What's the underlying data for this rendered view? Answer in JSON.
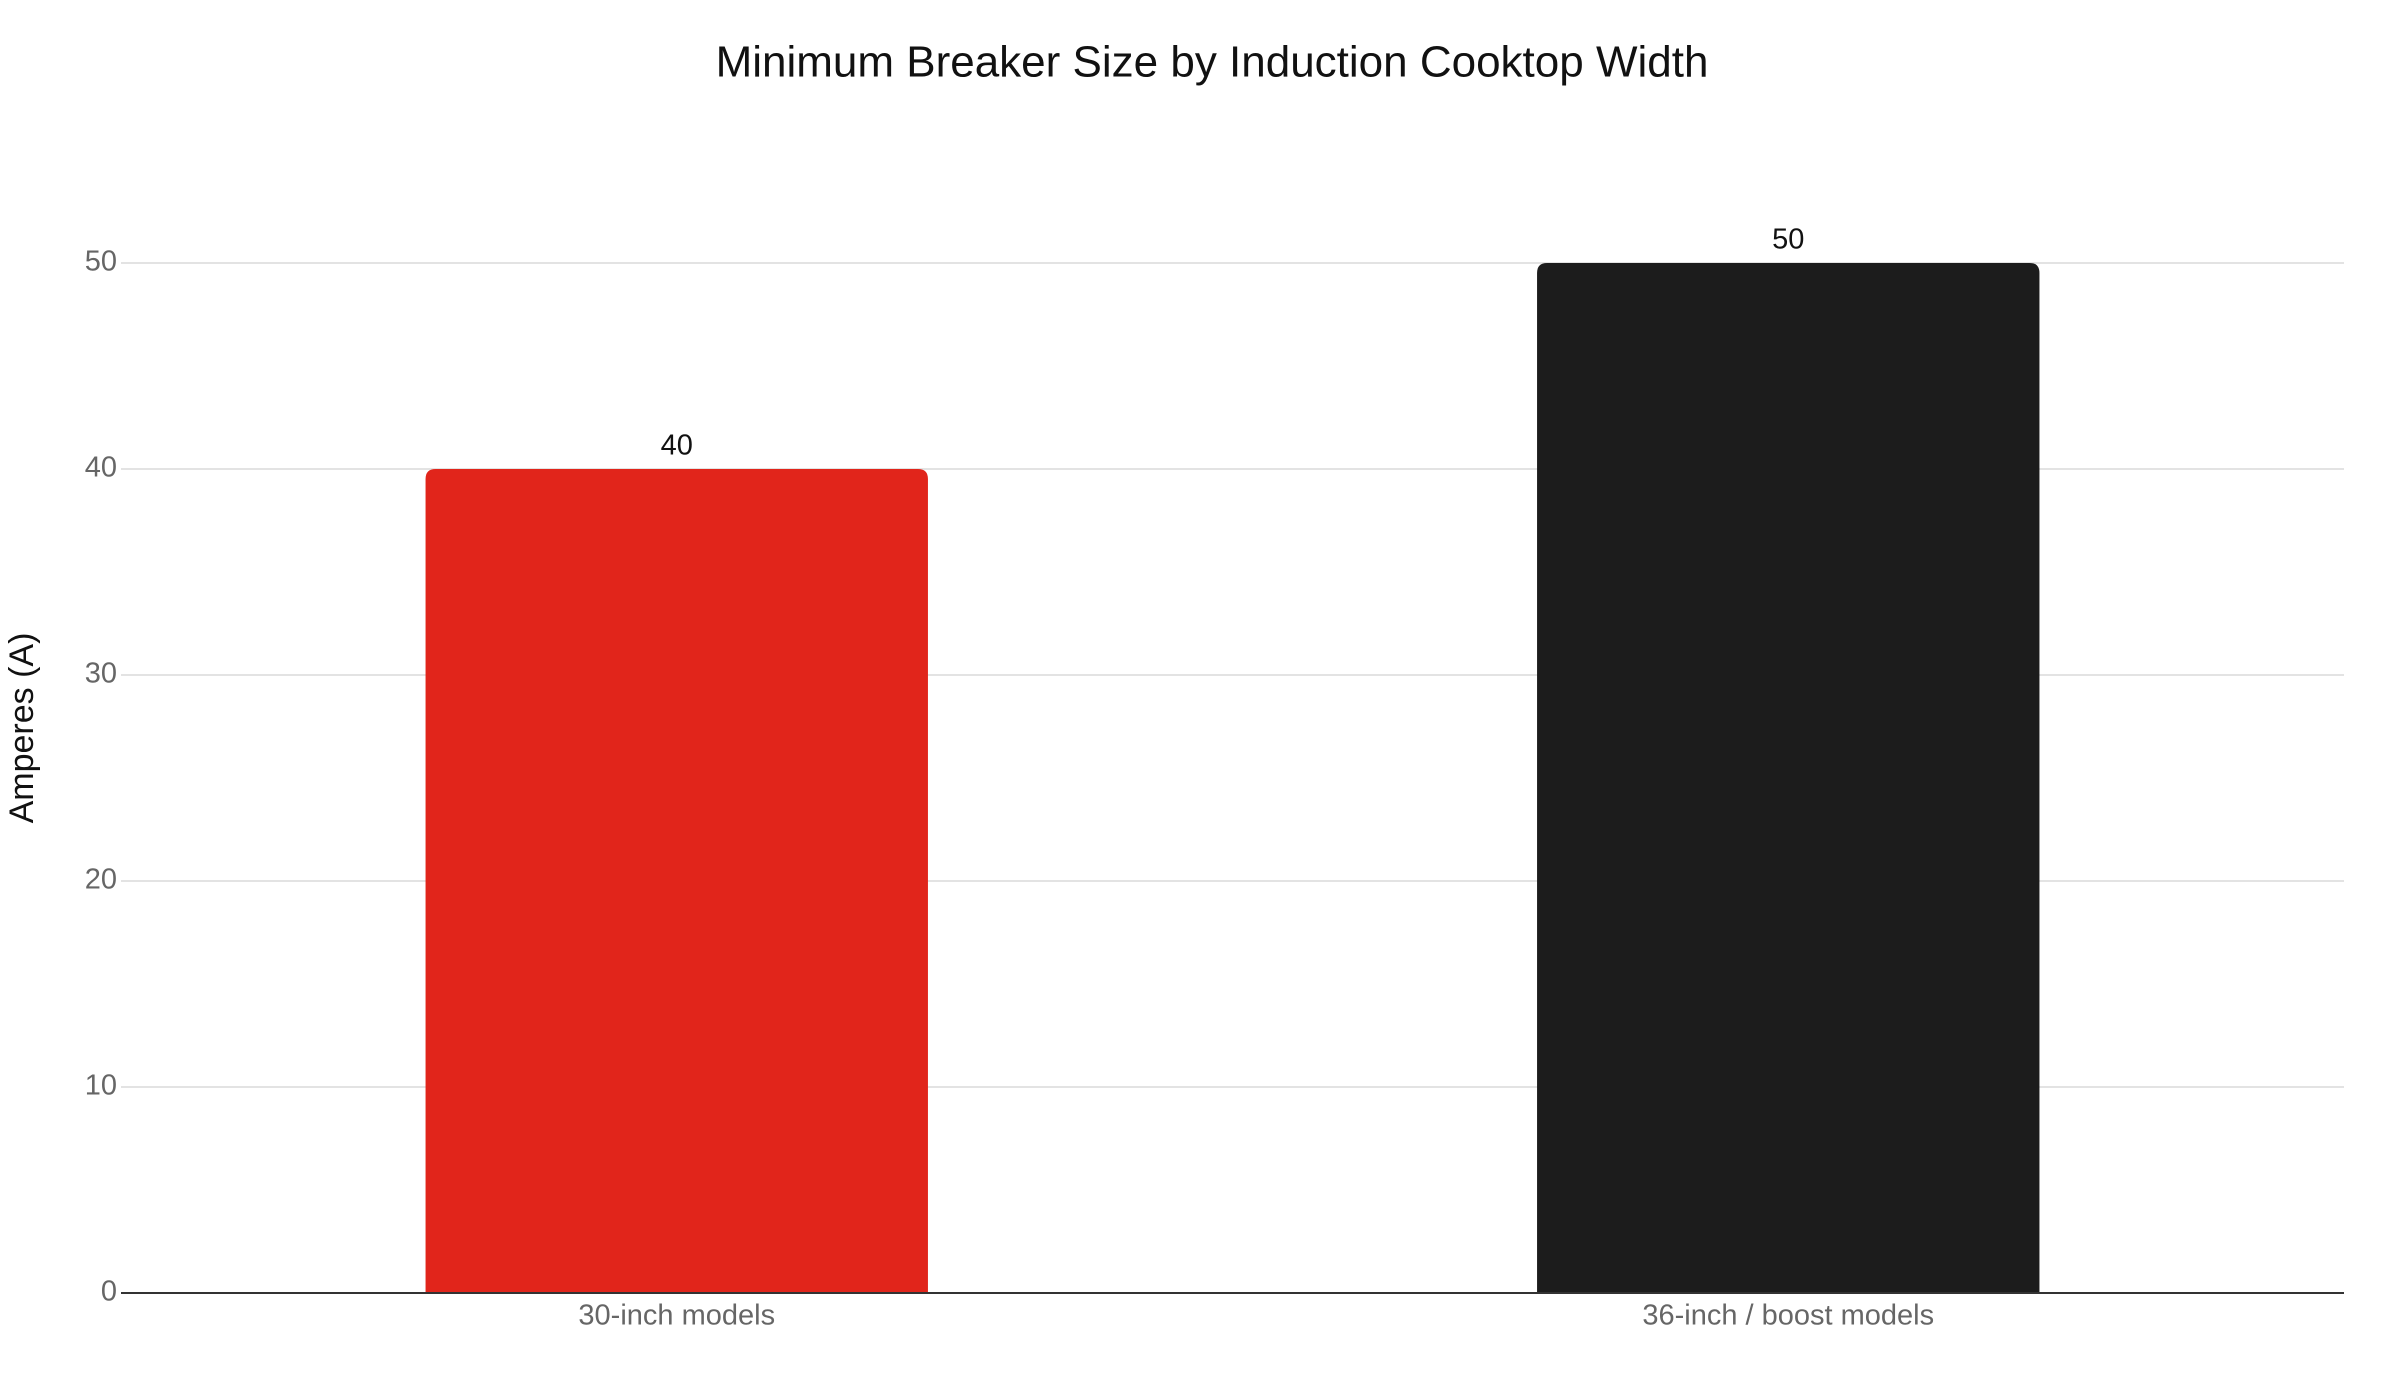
{
  "chart_data": {
    "type": "bar",
    "title": "Minimum Breaker Size by Induction Cooktop Width",
    "y_label": "Amperes (A)",
    "categories": [
      "30-inch models",
      "36-inch / boost models"
    ],
    "values": [
      40,
      50
    ],
    "colors": [
      "#e1251b",
      "#1c1c1c"
    ],
    "ylim": [
      0,
      50
    ],
    "yticks": [
      0,
      10,
      20,
      30,
      40,
      50
    ],
    "grid": true
  }
}
